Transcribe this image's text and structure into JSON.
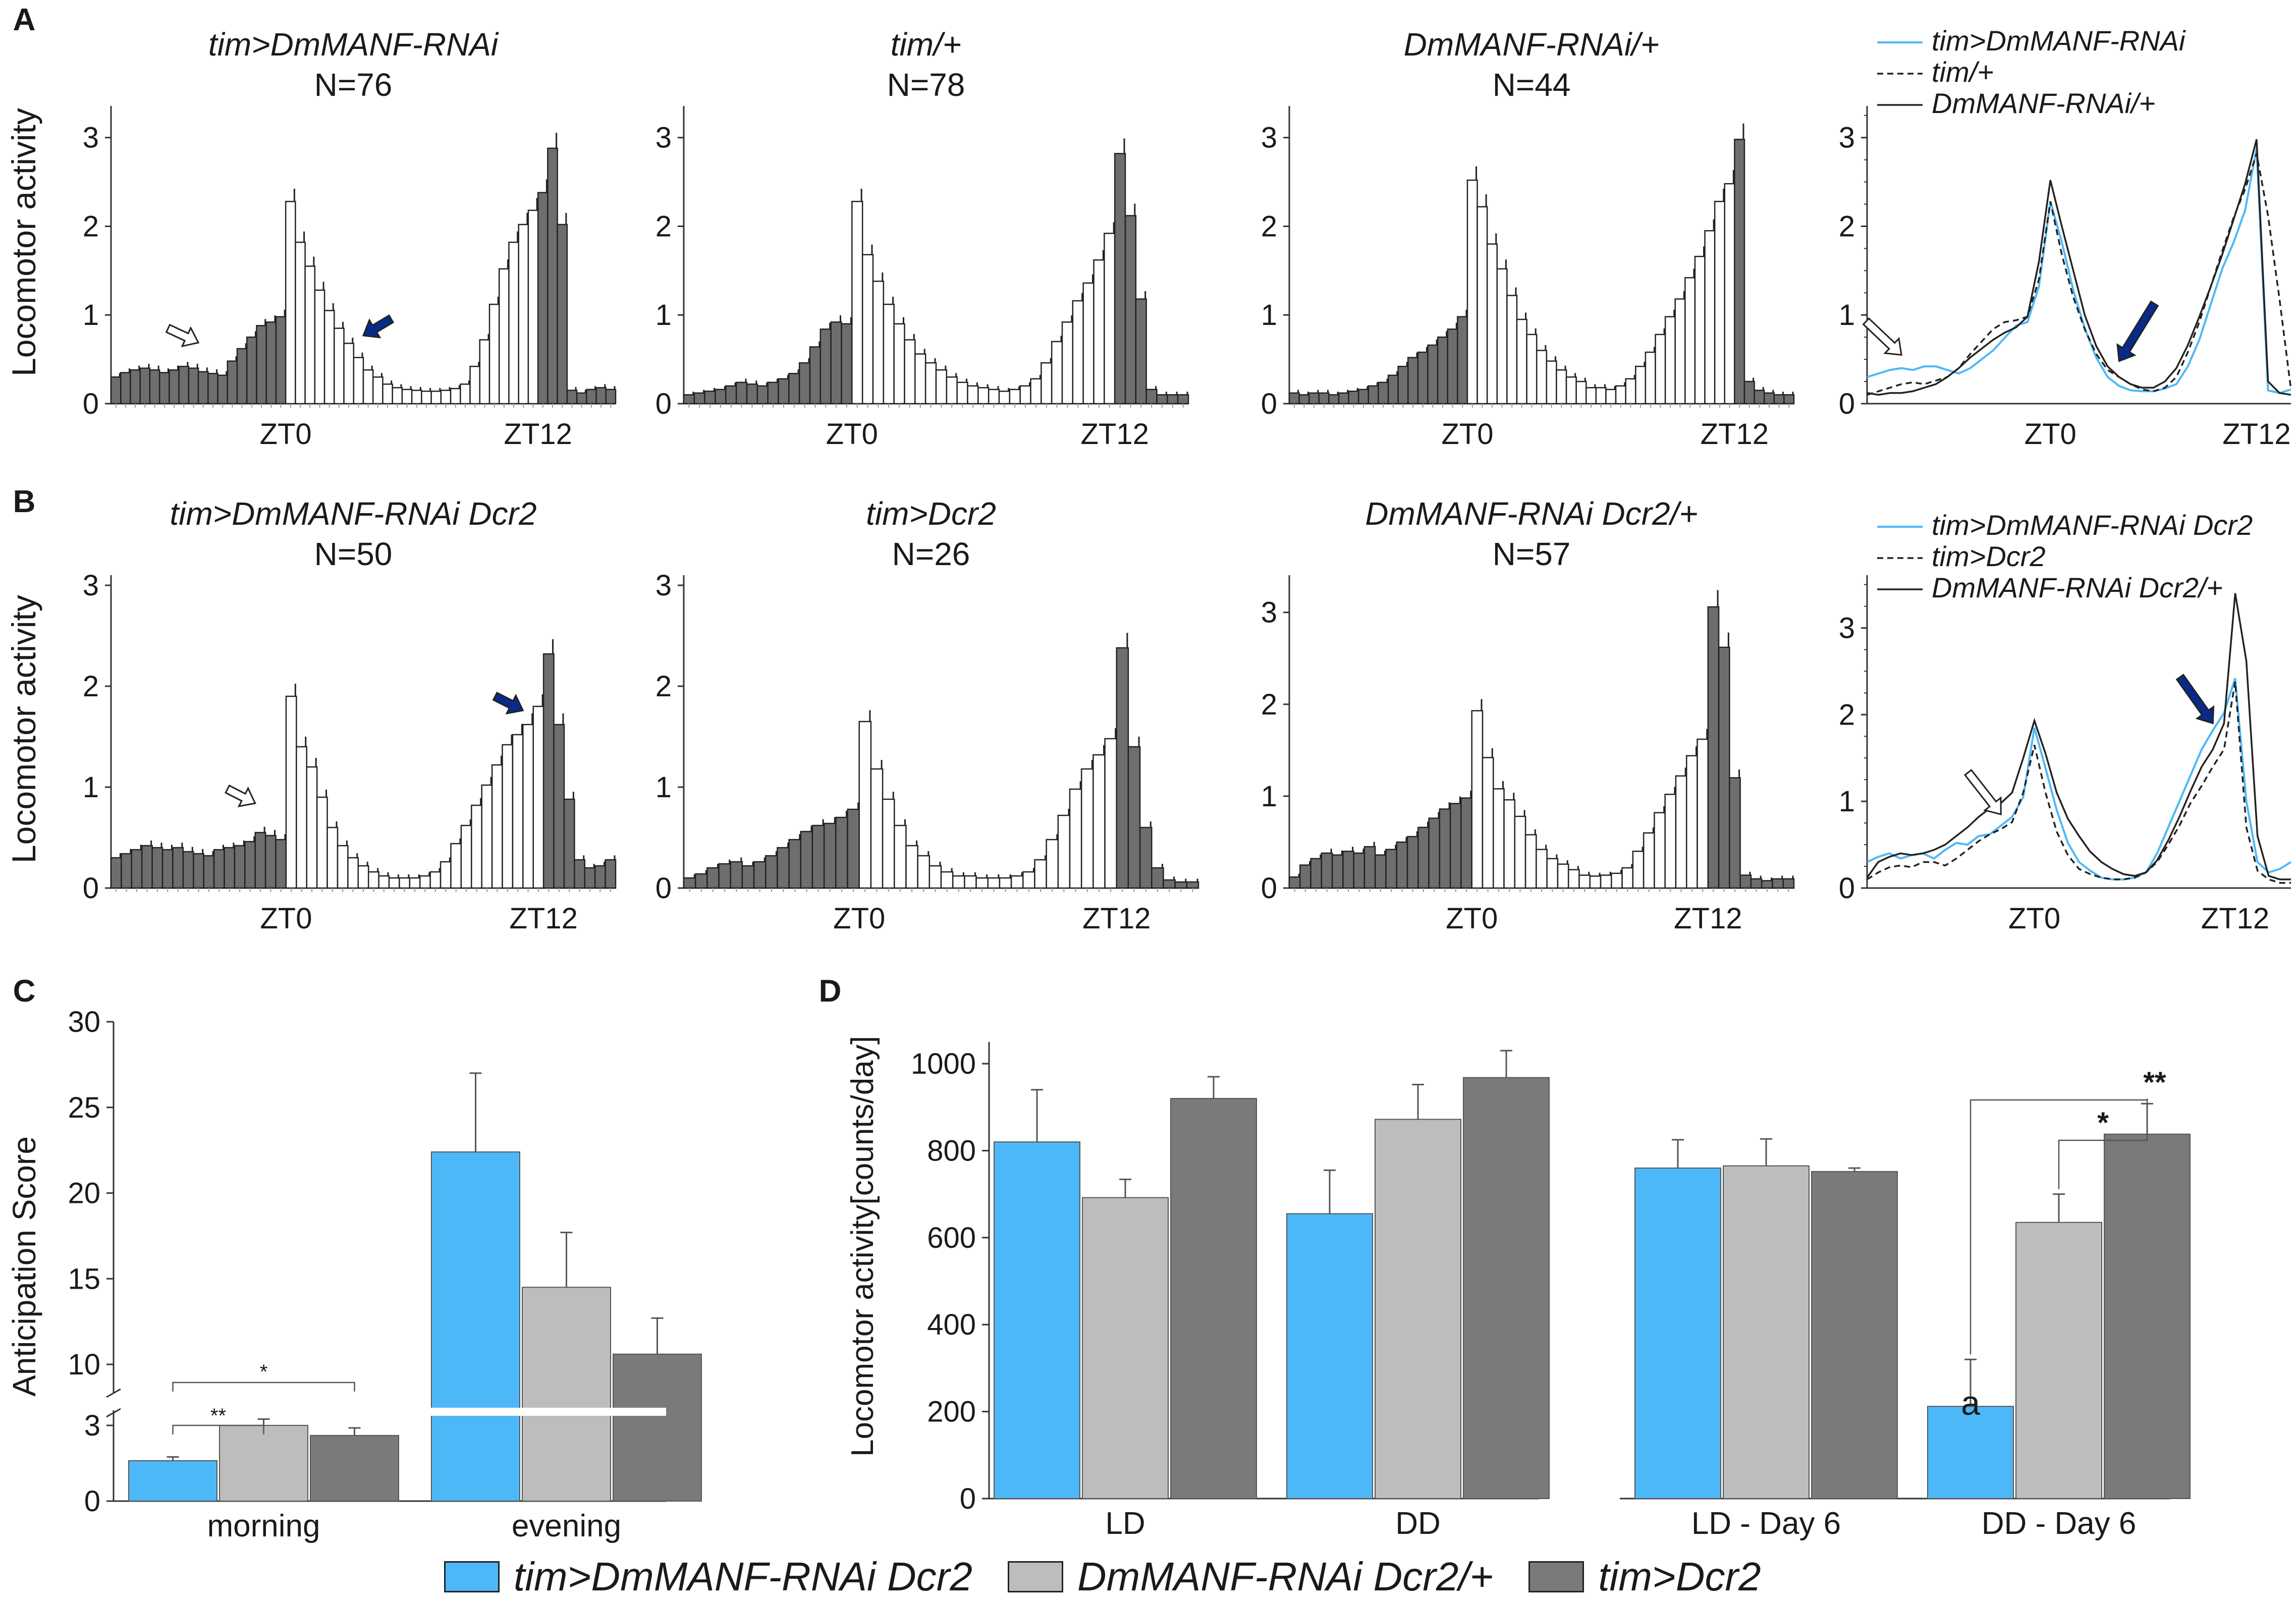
{
  "colors": {
    "knockdown": "#4db8f8",
    "rnai_ctrl": "#bdbdbd",
    "gal4_ctrl": "#7a7a7a",
    "dark_bar": "#6e6e6e",
    "light_bar": "#ffffff",
    "arrow_blue": "#0a2a8a"
  },
  "panel_labels": {
    "a": "A",
    "b": "B",
    "c": "C",
    "d": "D"
  },
  "common": {
    "y_label": "Locomotor activity",
    "zt0": "ZT0",
    "zt12": "ZT12"
  },
  "chart_data": [
    {
      "type": "bar",
      "panel": "A",
      "title": "tim>DmMANF-RNAi",
      "n_label": "N=76",
      "ylim": [
        0,
        3.3
      ],
      "ticks": [
        "0",
        "1",
        "2",
        "3"
      ],
      "values": [
        0.3,
        0.35,
        0.38,
        0.4,
        0.38,
        0.35,
        0.38,
        0.42,
        0.4,
        0.36,
        0.34,
        0.32,
        0.48,
        0.62,
        0.75,
        0.88,
        0.92,
        0.98,
        2.28,
        1.82,
        1.55,
        1.28,
        1.05,
        0.85,
        0.68,
        0.52,
        0.38,
        0.3,
        0.22,
        0.18,
        0.16,
        0.15,
        0.14,
        0.14,
        0.15,
        0.17,
        0.22,
        0.42,
        0.72,
        1.12,
        1.52,
        1.82,
        2.02,
        2.18,
        2.38,
        2.88,
        2.02,
        0.15,
        0.12,
        0.16,
        0.18,
        0.16
      ]
    },
    {
      "type": "bar",
      "panel": "A",
      "title": "tim/+",
      "n_label": "N=78",
      "ylim": [
        0,
        3.3
      ],
      "ticks": [
        "0",
        "1",
        "2",
        "3"
      ],
      "values": [
        0.1,
        0.12,
        0.14,
        0.16,
        0.2,
        0.24,
        0.22,
        0.2,
        0.24,
        0.28,
        0.34,
        0.46,
        0.64,
        0.84,
        0.92,
        0.9,
        2.28,
        1.68,
        1.38,
        1.12,
        0.9,
        0.72,
        0.56,
        0.46,
        0.38,
        0.3,
        0.24,
        0.2,
        0.18,
        0.16,
        0.14,
        0.16,
        0.2,
        0.28,
        0.46,
        0.7,
        0.92,
        1.16,
        1.36,
        1.62,
        1.92,
        2.82,
        2.12,
        1.18,
        0.16,
        0.1,
        0.1,
        0.1
      ]
    },
    {
      "type": "bar",
      "panel": "A",
      "title": "DmMANF-RNAi/+",
      "n_label": "N=44",
      "ylim": [
        0,
        3.3
      ],
      "ticks": [
        "0",
        "1",
        "2",
        "3"
      ],
      "values": [
        0.12,
        0.1,
        0.12,
        0.12,
        0.1,
        0.12,
        0.14,
        0.16,
        0.2,
        0.24,
        0.32,
        0.42,
        0.52,
        0.58,
        0.66,
        0.75,
        0.84,
        0.98,
        2.52,
        2.22,
        1.8,
        1.52,
        1.22,
        0.95,
        0.78,
        0.6,
        0.48,
        0.38,
        0.3,
        0.25,
        0.18,
        0.18,
        0.16,
        0.2,
        0.28,
        0.42,
        0.58,
        0.78,
        0.98,
        1.18,
        1.42,
        1.66,
        1.95,
        2.28,
        2.48,
        2.98,
        0.25,
        0.15,
        0.12,
        0.1,
        0.1
      ]
    },
    {
      "type": "line",
      "panel": "A",
      "legend": [
        "tim>DmMANF-RNAi",
        "tim/+",
        "DmMANF-RNAi/+"
      ],
      "ylim": [
        0,
        3.3
      ],
      "ticks": [
        "0",
        "1",
        "2",
        "3"
      ],
      "series": [
        {
          "name": "tim>DmMANF-RNAi",
          "values": [
            0.3,
            0.34,
            0.38,
            0.4,
            0.38,
            0.42,
            0.42,
            0.38,
            0.34,
            0.4,
            0.5,
            0.6,
            0.74,
            0.88,
            0.92,
            1.32,
            2.28,
            1.82,
            1.28,
            0.85,
            0.52,
            0.3,
            0.2,
            0.15,
            0.14,
            0.14,
            0.17,
            0.22,
            0.42,
            0.72,
            1.12,
            1.52,
            1.82,
            2.18,
            2.88,
            0.15,
            0.12,
            0.16
          ]
        },
        {
          "name": "tim/+",
          "values": [
            0.1,
            0.14,
            0.18,
            0.22,
            0.24,
            0.22,
            0.26,
            0.3,
            0.4,
            0.56,
            0.7,
            0.84,
            0.92,
            0.94,
            0.98,
            1.4,
            2.28,
            1.68,
            1.2,
            0.84,
            0.56,
            0.38,
            0.3,
            0.22,
            0.16,
            0.14,
            0.18,
            0.3,
            0.58,
            0.92,
            1.32,
            1.72,
            2.1,
            2.42,
            2.82,
            2.12,
            1.18,
            0.16
          ]
        },
        {
          "name": "DmMANF-RNAi/+",
          "values": [
            0.12,
            0.1,
            0.12,
            0.12,
            0.14,
            0.18,
            0.22,
            0.3,
            0.4,
            0.52,
            0.62,
            0.72,
            0.8,
            0.86,
            0.98,
            1.6,
            2.52,
            2.0,
            1.5,
            1.0,
            0.65,
            0.42,
            0.3,
            0.22,
            0.18,
            0.18,
            0.25,
            0.4,
            0.66,
            0.98,
            1.32,
            1.68,
            2.08,
            2.48,
            2.98,
            0.25,
            0.12,
            0.1
          ]
        }
      ]
    },
    {
      "type": "bar",
      "panel": "B",
      "title": "tim>DmMANF-RNAi Dcr2",
      "n_label": "N=50",
      "ylim": [
        0,
        3.05
      ],
      "ticks": [
        "0",
        "1",
        "2",
        "3"
      ],
      "values": [
        0.3,
        0.34,
        0.38,
        0.42,
        0.4,
        0.38,
        0.4,
        0.36,
        0.34,
        0.32,
        0.38,
        0.4,
        0.42,
        0.46,
        0.55,
        0.52,
        0.48,
        1.9,
        1.4,
        1.2,
        0.9,
        0.6,
        0.42,
        0.3,
        0.22,
        0.16,
        0.12,
        0.1,
        0.1,
        0.1,
        0.12,
        0.16,
        0.26,
        0.44,
        0.62,
        0.82,
        1.02,
        1.22,
        1.42,
        1.52,
        1.62,
        1.8,
        2.32,
        1.62,
        0.88,
        0.28,
        0.2,
        0.22,
        0.28
      ]
    },
    {
      "type": "bar",
      "panel": "B",
      "title": "tim>Dcr2",
      "n_label": "N=26",
      "ylim": [
        0,
        3.05
      ],
      "ticks": [
        "0",
        "1",
        "2",
        "3"
      ],
      "values": [
        0.1,
        0.14,
        0.2,
        0.24,
        0.26,
        0.22,
        0.26,
        0.32,
        0.4,
        0.48,
        0.56,
        0.62,
        0.64,
        0.7,
        0.78,
        1.65,
        1.18,
        0.88,
        0.62,
        0.42,
        0.32,
        0.22,
        0.16,
        0.12,
        0.12,
        0.1,
        0.1,
        0.1,
        0.12,
        0.16,
        0.28,
        0.48,
        0.72,
        0.98,
        1.18,
        1.32,
        1.48,
        2.38,
        1.4,
        0.6,
        0.2,
        0.08,
        0.06,
        0.06
      ]
    },
    {
      "type": "bar",
      "panel": "B",
      "title": "DmMANF-RNAi Dcr2/+",
      "n_label": "N=57",
      "ylim": [
        0,
        3.35
      ],
      "ticks": [
        "0",
        "1",
        "2",
        "3"
      ],
      "values": [
        0.12,
        0.25,
        0.32,
        0.38,
        0.36,
        0.4,
        0.38,
        0.45,
        0.36,
        0.42,
        0.5,
        0.56,
        0.66,
        0.76,
        0.86,
        0.92,
        0.98,
        1.93,
        1.42,
        1.08,
        0.96,
        0.78,
        0.58,
        0.42,
        0.32,
        0.26,
        0.2,
        0.14,
        0.13,
        0.14,
        0.16,
        0.22,
        0.4,
        0.6,
        0.82,
        1.02,
        1.22,
        1.44,
        1.62,
        3.06,
        2.62,
        1.2,
        0.14,
        0.1,
        0.08,
        0.1,
        0.1
      ]
    },
    {
      "type": "line",
      "panel": "B",
      "legend": [
        "tim>DmMANF-RNAi Dcr2",
        "tim>Dcr2",
        "DmMANF-RNAi Dcr2/+"
      ],
      "ylim": [
        0,
        3.55
      ],
      "ticks": [
        "0",
        "1",
        "2",
        "3"
      ],
      "series": [
        {
          "name": "tim>DmMANF-RNAi Dcr2",
          "values": [
            0.3,
            0.36,
            0.4,
            0.34,
            0.38,
            0.4,
            0.34,
            0.44,
            0.52,
            0.5,
            0.6,
            0.62,
            0.72,
            0.82,
            1.05,
            1.85,
            1.38,
            0.9,
            0.52,
            0.3,
            0.2,
            0.12,
            0.1,
            0.1,
            0.12,
            0.18,
            0.4,
            0.7,
            1.0,
            1.3,
            1.6,
            1.82,
            2.02,
            2.42,
            1.0,
            0.3,
            0.18,
            0.22,
            0.3
          ]
        },
        {
          "name": "tim>Dcr2",
          "values": [
            0.1,
            0.18,
            0.24,
            0.26,
            0.24,
            0.3,
            0.3,
            0.26,
            0.34,
            0.44,
            0.54,
            0.62,
            0.68,
            0.76,
            1.1,
            1.65,
            1.1,
            0.65,
            0.38,
            0.22,
            0.16,
            0.12,
            0.1,
            0.1,
            0.12,
            0.18,
            0.3,
            0.5,
            0.72,
            0.98,
            1.18,
            1.4,
            1.6,
            2.38,
            0.7,
            0.2,
            0.1,
            0.06,
            0.06
          ]
        },
        {
          "name": "DmMANF-RNAi Dcr2/+",
          "values": [
            0.12,
            0.3,
            0.36,
            0.4,
            0.38,
            0.4,
            0.44,
            0.5,
            0.6,
            0.7,
            0.82,
            0.92,
            0.98,
            1.1,
            1.5,
            1.93,
            1.55,
            1.1,
            0.8,
            0.6,
            0.42,
            0.3,
            0.22,
            0.16,
            0.14,
            0.18,
            0.32,
            0.55,
            0.82,
            1.12,
            1.4,
            1.6,
            1.9,
            3.4,
            2.62,
            0.6,
            0.14,
            0.1,
            0.1
          ]
        }
      ]
    },
    {
      "type": "bar",
      "panel": "C",
      "ylabel": "Anticipation Score",
      "ticks": [
        "0",
        "3",
        "10",
        "15",
        "20",
        "25",
        "30"
      ],
      "categories": [
        "morning",
        "evening"
      ],
      "series": [
        {
          "name": "tim>DmMANF-RNAi Dcr2",
          "values": [
            1.6,
            22.4
          ],
          "errors": [
            0.15,
            4.6
          ]
        },
        {
          "name": "DmMANF-RNAi Dcr2/+",
          "values": [
            3.0,
            14.5
          ],
          "errors": [
            0.25,
            3.2
          ]
        },
        {
          "name": "tim>Dcr2",
          "values": [
            2.6,
            10.6
          ],
          "errors": [
            0.3,
            2.1
          ]
        }
      ],
      "significance": [
        "**",
        "*"
      ]
    },
    {
      "type": "bar",
      "panel": "D",
      "ylabel": "Locomotor activity[counts/day]",
      "ylim": [
        0,
        1050
      ],
      "ticks": [
        "0",
        "200",
        "400",
        "600",
        "800",
        "1000"
      ],
      "categories": [
        "LD",
        "DD",
        "LD - Day 6",
        "DD - Day 6"
      ],
      "series": [
        {
          "name": "tim>DmMANF-RNAi Dcr2",
          "values": [
            820,
            655,
            760,
            212
          ],
          "errors": [
            120,
            100,
            65,
            108
          ]
        },
        {
          "name": "DmMANF-RNAi Dcr2/+",
          "values": [
            692,
            872,
            765,
            635
          ],
          "errors": [
            42,
            80,
            62,
            65
          ]
        },
        {
          "name": "tim>Dcr2",
          "values": [
            920,
            968,
            752,
            838
          ],
          "errors": [
            50,
            62,
            8,
            70
          ]
        }
      ],
      "annotations": [
        "a",
        "**",
        "*"
      ]
    }
  ],
  "legend": [
    {
      "label": "tim>DmMANF-RNAi Dcr2",
      "color": "#4db8f8"
    },
    {
      "label": "DmMANF-RNAi Dcr2/+",
      "color": "#bdbdbd"
    },
    {
      "label": "tim>Dcr2",
      "color": "#7a7a7a"
    }
  ]
}
